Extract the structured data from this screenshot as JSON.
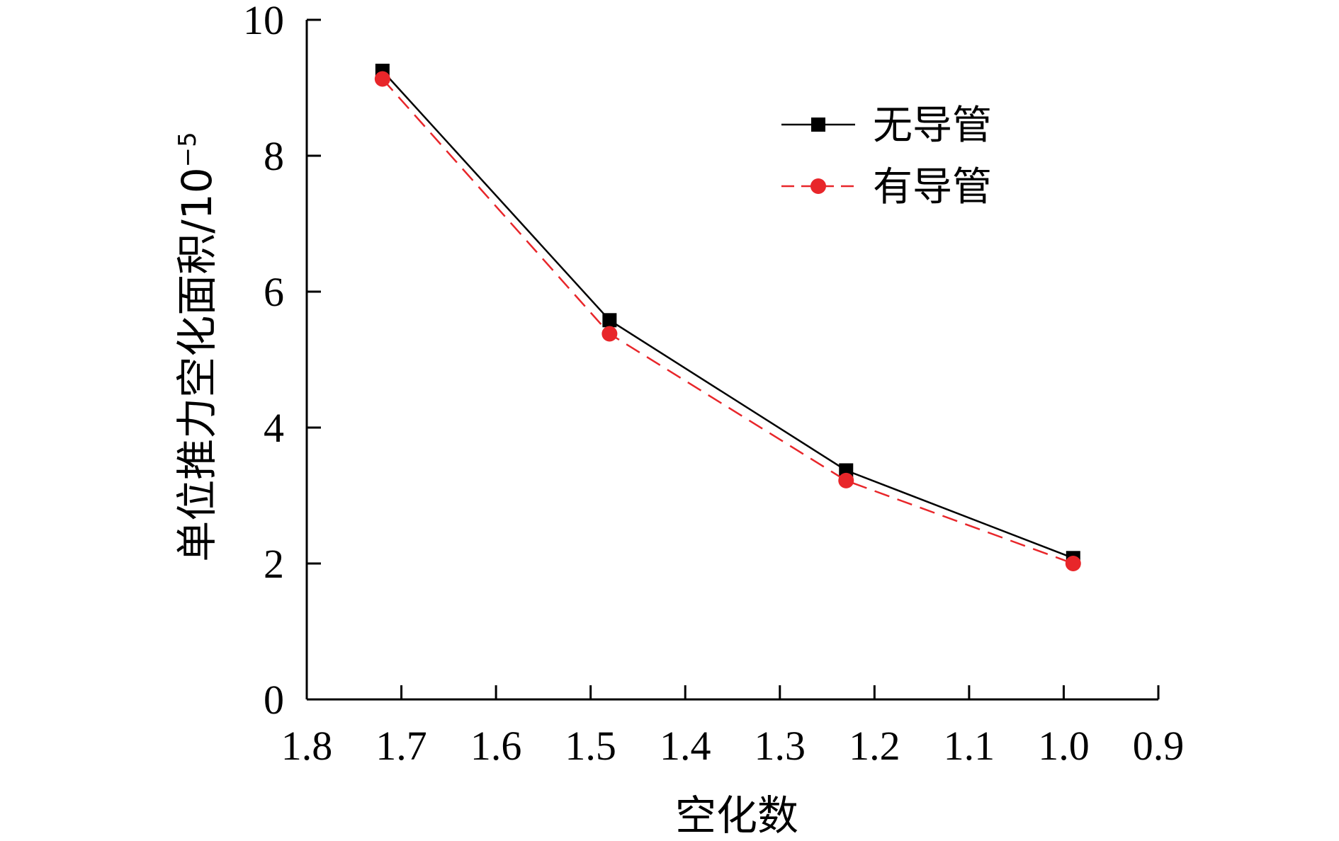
{
  "chart_data": {
    "type": "line",
    "xlabel": "空化数",
    "ylabel": "单位推力空化面积/10",
    "ylabel_exponent": "−5",
    "xlim": [
      1.8,
      0.9
    ],
    "ylim": [
      0,
      10
    ],
    "x_ticks": [
      "1.8",
      "1.7",
      "1.6",
      "1.5",
      "1.4",
      "1.3",
      "1.2",
      "1.1",
      "1.0",
      "0.9"
    ],
    "y_ticks": [
      "0",
      "2",
      "4",
      "6",
      "8",
      "10"
    ],
    "legend_position": "top-right",
    "series": [
      {
        "name": "无导管",
        "color": "#000000",
        "marker": "square",
        "line_style": "solid",
        "x": [
          1.72,
          1.48,
          1.23,
          0.99
        ],
        "y": [
          9.25,
          5.58,
          3.37,
          2.08
        ]
      },
      {
        "name": "有导管",
        "color": "#e8262a",
        "marker": "circle",
        "line_style": "dashed",
        "x": [
          1.72,
          1.48,
          1.23,
          0.99
        ],
        "y": [
          9.13,
          5.38,
          3.22,
          2.0
        ]
      }
    ]
  }
}
